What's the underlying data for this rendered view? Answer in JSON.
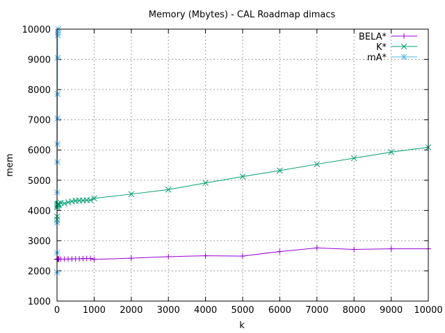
{
  "chart_data": {
    "type": "line",
    "title": "Memory (Mbytes) - CAL Roadmap dimacs",
    "xlabel": "k",
    "ylabel": "mem",
    "xlim": [
      0,
      10000
    ],
    "ylim": [
      1000,
      10000
    ],
    "xticks": [
      0,
      1000,
      2000,
      3000,
      4000,
      5000,
      6000,
      7000,
      8000,
      9000,
      10000
    ],
    "yticks": [
      1000,
      2000,
      3000,
      4000,
      5000,
      6000,
      7000,
      8000,
      9000,
      10000
    ],
    "grid": true,
    "legend_position": "top-right",
    "series": [
      {
        "name": "BELA*",
        "color": "#9400d3",
        "marker": "plus",
        "x": [
          1,
          2,
          3,
          5,
          10,
          20,
          30,
          40,
          50,
          100,
          200,
          300,
          400,
          500,
          600,
          700,
          800,
          900,
          1000,
          2000,
          3000,
          4000,
          5000,
          6000,
          7000,
          8000,
          9000,
          10000
        ],
        "y": [
          2380,
          2380,
          2385,
          2385,
          2390,
          2390,
          2390,
          2390,
          2395,
          2390,
          2390,
          2390,
          2395,
          2400,
          2400,
          2405,
          2410,
          2410,
          2380,
          2420,
          2470,
          2500,
          2490,
          2640,
          2760,
          2710,
          2730,
          2730
        ]
      },
      {
        "name": "K*",
        "color": "#009e73",
        "marker": "x",
        "x": [
          1,
          2,
          3,
          5,
          10,
          20,
          30,
          40,
          50,
          100,
          200,
          300,
          400,
          500,
          600,
          700,
          800,
          900,
          1000,
          2000,
          3000,
          4000,
          5000,
          6000,
          7000,
          8000,
          9000,
          10000
        ],
        "y": [
          3700,
          3800,
          4100,
          4150,
          4200,
          4180,
          4220,
          4230,
          4180,
          4250,
          4230,
          4270,
          4300,
          4320,
          4330,
          4330,
          4340,
          4340,
          4400,
          4540,
          4690,
          4910,
          5120,
          5320,
          5530,
          5730,
          5930,
          6090
        ]
      },
      {
        "name": "mA*",
        "color": "#56b4e9",
        "marker": "star",
        "x": [
          1,
          2,
          3,
          5,
          8,
          10,
          12,
          15,
          18,
          20,
          25,
          30
        ],
        "y": [
          1950,
          2600,
          3600,
          4600,
          5600,
          6200,
          7050,
          7850,
          9050,
          9800,
          9900,
          10000
        ]
      }
    ]
  }
}
